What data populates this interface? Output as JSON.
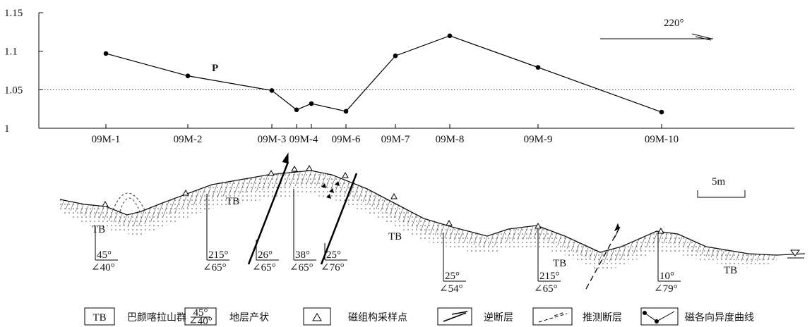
{
  "chart_data": {
    "type": "line",
    "categories": [
      "09M-1",
      "09M-2",
      "09M-3",
      "09M-4",
      null,
      "09M-6",
      "09M-7",
      "09M-8",
      "09M-9",
      "09M-10"
    ],
    "values": [
      1.097,
      1.068,
      1.049,
      1.024,
      1.032,
      1.022,
      1.094,
      1.12,
      1.079,
      1.021
    ],
    "color": "#000000",
    "ylim": [
      1,
      1.15
    ],
    "yticks": [
      1,
      1.05,
      1.1,
      1.15
    ],
    "reference_line": 1.05,
    "series_label": "P",
    "direction": "220°"
  },
  "section": {
    "formation_labels": [
      "TB",
      "TB",
      "TB",
      "TB",
      "TB"
    ],
    "attitudes": [
      {
        "strike": "45°",
        "dip": "∠40°"
      },
      {
        "strike": "215°",
        "dip": "∠65°"
      },
      {
        "strike": "26°",
        "dip": "∠65°"
      },
      {
        "strike": "38°",
        "dip": "∠65°"
      },
      {
        "strike": "25°",
        "dip": "∠76°"
      },
      {
        "strike": "25°",
        "dip": "∠54°"
      },
      {
        "strike": "215°",
        "dip": "∠65°"
      },
      {
        "strike": "10°",
        "dip": "∠79°"
      }
    ],
    "scale": "5m"
  },
  "legend": [
    {
      "symbol": "TB",
      "label": "巴颜喀拉山群"
    },
    {
      "symbol": [
        "45°",
        "∠40°"
      ],
      "label": "地层产状"
    },
    {
      "label": "磁组构采样点"
    },
    {
      "label": "逆断层"
    },
    {
      "label": "推测断层"
    },
    {
      "label": "磁各向异度曲线"
    }
  ]
}
